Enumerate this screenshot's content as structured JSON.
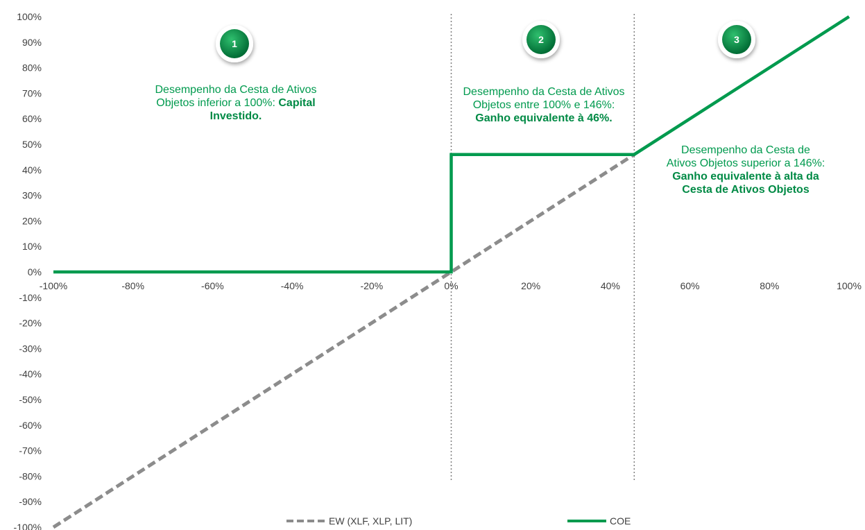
{
  "chart_data": {
    "type": "line",
    "title": "",
    "xlabel": "",
    "ylabel": "",
    "xlim": [
      -100,
      100
    ],
    "ylim": [
      -100,
      100
    ],
    "x_ticks": [
      "-100%",
      "-80%",
      "-60%",
      "-40%",
      "-20%",
      "0%",
      "20%",
      "40%",
      "60%",
      "80%",
      "100%"
    ],
    "y_ticks": [
      "100%",
      "90%",
      "80%",
      "70%",
      "60%",
      "50%",
      "40%",
      "30%",
      "20%",
      "10%",
      "0%",
      "-10%",
      "-20%",
      "-30%",
      "-40%",
      "-50%",
      "-60%",
      "-70%",
      "-80%",
      "-90%",
      "-100%"
    ],
    "grid": false,
    "legend_position": "bottom",
    "series": [
      {
        "name": "EW (XLF, XLP, LIT)",
        "style": "dashed",
        "color": "#8c8c8c",
        "x": [
          -100,
          46
        ],
        "y": [
          -100,
          46
        ]
      },
      {
        "name": "COE",
        "style": "solid",
        "color": "#009a4e",
        "x": [
          -100,
          0,
          0,
          46,
          46,
          100
        ],
        "y": [
          0,
          0,
          46,
          46,
          46,
          100
        ]
      }
    ],
    "vertical_markers": [
      0,
      46
    ],
    "annotations": [
      {
        "badge": "1",
        "text": "Desempenho da Cesta de Ativos Objetos inferior a 100%: ",
        "bold": "Capital Investido."
      },
      {
        "badge": "2",
        "text": "Desempenho da Cesta de Ativos Objetos entre 100% e 146%: ",
        "bold": "Ganho equivalente à 46%."
      },
      {
        "badge": "3",
        "text": "Desempenho da Cesta de Ativos Objetos superior a 146%: ",
        "bold": "Ganho equivalente à alta da Cesta de Ativos Objetos"
      }
    ]
  },
  "colors": {
    "green": "#009a4e",
    "gray": "#8c8c8c"
  }
}
